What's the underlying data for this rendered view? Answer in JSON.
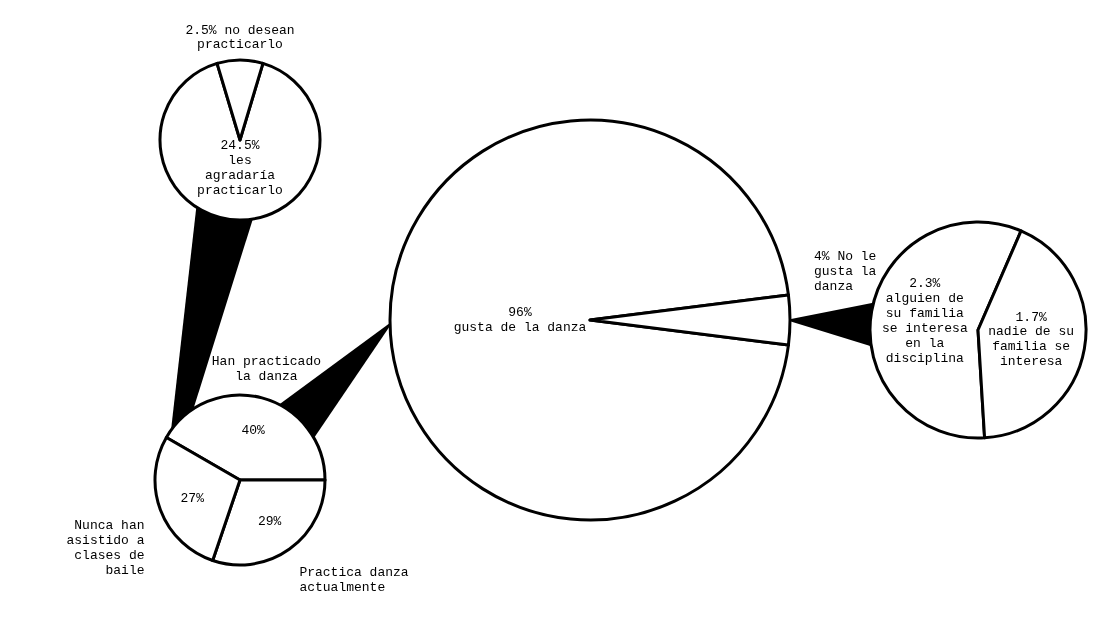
{
  "chart_data": [
    {
      "type": "pie",
      "categories": [
        "gusta de la danza",
        "No le gusta la danza"
      ],
      "values": [
        96,
        4
      ],
      "value_labels": [
        "96%",
        "4%"
      ],
      "colors": [
        "#ffffff",
        "#ffffff"
      ]
    },
    {
      "type": "pie",
      "categories": [
        "Han practicado la danza",
        "Practica danza actualmente",
        "Nunca han asistido a clases de baile"
      ],
      "values": [
        40,
        29,
        27
      ],
      "value_labels": [
        "40%",
        "29%",
        "27%"
      ],
      "colors": [
        "#ffffff",
        "#ffffff",
        "#ffffff"
      ]
    },
    {
      "type": "pie",
      "categories": [
        "les agradaría practicarlo",
        "no desean practicarlo"
      ],
      "values": [
        24.5,
        2.5
      ],
      "value_labels": [
        "24.5%",
        "2.5%"
      ],
      "colors": [
        "#ffffff",
        "#ffffff"
      ]
    },
    {
      "type": "pie",
      "categories": [
        "alguien de su familia se interesa en la disciplina",
        "nadie de su familia se interesa"
      ],
      "values": [
        2.3,
        1.7
      ],
      "value_labels": [
        "2.3%",
        "1.7%"
      ],
      "colors": [
        "#ffffff",
        "#ffffff"
      ]
    }
  ]
}
